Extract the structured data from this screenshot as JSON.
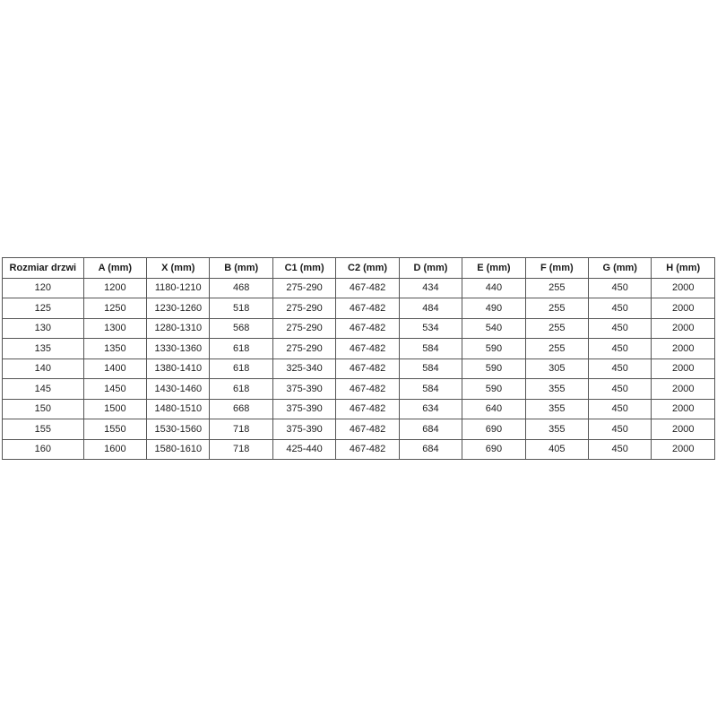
{
  "table": {
    "title_semantic": "door-dimensions-table",
    "columns": [
      "Rozmiar drzwi",
      "A (mm)",
      "X (mm)",
      "B (mm)",
      "C1 (mm)",
      "C2 (mm)",
      "D (mm)",
      "E (mm)",
      "F (mm)",
      "G (mm)",
      "H (mm)"
    ],
    "rows": [
      [
        "120",
        "1200",
        "1180-1210",
        "468",
        "275-290",
        "467-482",
        "434",
        "440",
        "255",
        "450",
        "2000"
      ],
      [
        "125",
        "1250",
        "1230-1260",
        "518",
        "275-290",
        "467-482",
        "484",
        "490",
        "255",
        "450",
        "2000"
      ],
      [
        "130",
        "1300",
        "1280-1310",
        "568",
        "275-290",
        "467-482",
        "534",
        "540",
        "255",
        "450",
        "2000"
      ],
      [
        "135",
        "1350",
        "1330-1360",
        "618",
        "275-290",
        "467-482",
        "584",
        "590",
        "255",
        "450",
        "2000"
      ],
      [
        "140",
        "1400",
        "1380-1410",
        "618",
        "325-340",
        "467-482",
        "584",
        "590",
        "305",
        "450",
        "2000"
      ],
      [
        "145",
        "1450",
        "1430-1460",
        "618",
        "375-390",
        "467-482",
        "584",
        "590",
        "355",
        "450",
        "2000"
      ],
      [
        "150",
        "1500",
        "1480-1510",
        "668",
        "375-390",
        "467-482",
        "634",
        "640",
        "355",
        "450",
        "2000"
      ],
      [
        "155",
        "1550",
        "1530-1560",
        "718",
        "375-390",
        "467-482",
        "684",
        "690",
        "355",
        "450",
        "2000"
      ],
      [
        "160",
        "1600",
        "1580-1610",
        "718",
        "425-440",
        "467-482",
        "684",
        "690",
        "405",
        "450",
        "2000"
      ]
    ],
    "colors": {
      "border": "#555555",
      "text": "#222222",
      "background": "#ffffff"
    }
  },
  "chart_data": {
    "type": "table",
    "columns": [
      "Rozmiar drzwi",
      "A (mm)",
      "X (mm)",
      "B (mm)",
      "C1 (mm)",
      "C2 (mm)",
      "D (mm)",
      "E (mm)",
      "F (mm)",
      "G (mm)",
      "H (mm)"
    ],
    "rows": [
      [
        "120",
        "1200",
        "1180-1210",
        "468",
        "275-290",
        "467-482",
        "434",
        "440",
        "255",
        "450",
        "2000"
      ],
      [
        "125",
        "1250",
        "1230-1260",
        "518",
        "275-290",
        "467-482",
        "484",
        "490",
        "255",
        "450",
        "2000"
      ],
      [
        "130",
        "1300",
        "1280-1310",
        "568",
        "275-290",
        "467-482",
        "534",
        "540",
        "255",
        "450",
        "2000"
      ],
      [
        "135",
        "1350",
        "1330-1360",
        "618",
        "275-290",
        "467-482",
        "584",
        "590",
        "255",
        "450",
        "2000"
      ],
      [
        "140",
        "1400",
        "1380-1410",
        "618",
        "325-340",
        "467-482",
        "584",
        "590",
        "305",
        "450",
        "2000"
      ],
      [
        "145",
        "1450",
        "1430-1460",
        "618",
        "375-390",
        "467-482",
        "584",
        "590",
        "355",
        "450",
        "2000"
      ],
      [
        "150",
        "1500",
        "1480-1510",
        "668",
        "375-390",
        "467-482",
        "634",
        "640",
        "355",
        "450",
        "2000"
      ],
      [
        "155",
        "1550",
        "1530-1560",
        "718",
        "375-390",
        "467-482",
        "684",
        "690",
        "355",
        "450",
        "2000"
      ],
      [
        "160",
        "1600",
        "1580-1610",
        "718",
        "425-440",
        "467-482",
        "684",
        "690",
        "405",
        "450",
        "2000"
      ]
    ]
  }
}
